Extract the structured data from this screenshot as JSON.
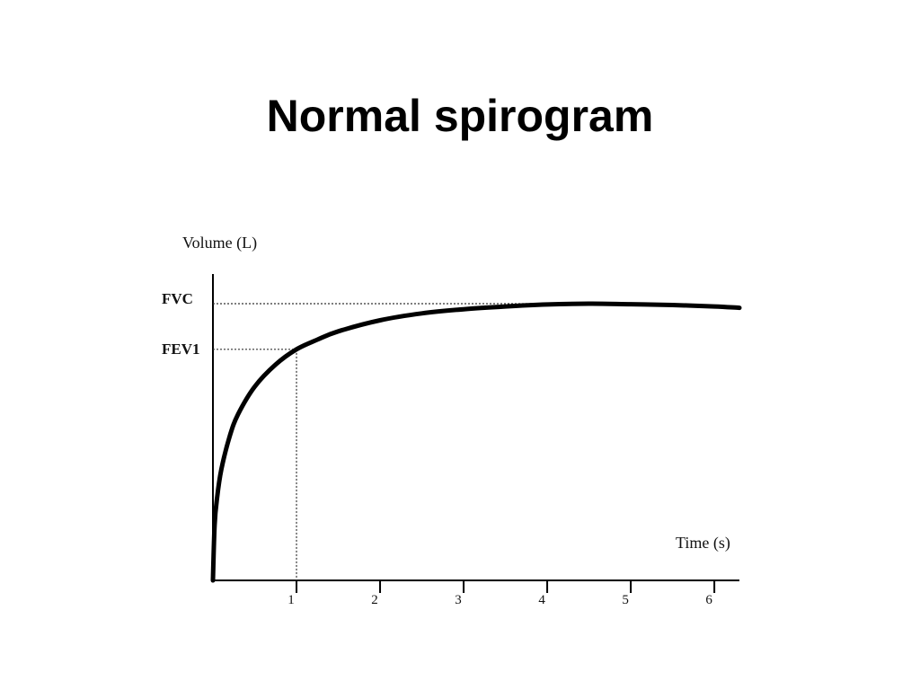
{
  "slide": {
    "title": "Normal spirogram"
  },
  "chart_data": {
    "type": "line",
    "title": "",
    "ylabel": "Volume (L)",
    "xlabel": "Time (s)",
    "x_ticks": [
      "1",
      "2",
      "3",
      "4",
      "5",
      "6"
    ],
    "xlim": [
      0,
      6.3
    ],
    "y_ticks": [
      "FEV1",
      "FVC"
    ],
    "ylim": [
      0,
      1.07
    ],
    "markers": {
      "fvc": {
        "label": "FVC",
        "y": 1.0
      },
      "fev1": {
        "label": "FEV1",
        "x": 1,
        "y": 0.835
      }
    },
    "grid": false,
    "legend": "none",
    "series": [
      {
        "x": [
          0,
          0.02,
          0.05,
          0.1,
          0.2,
          0.3,
          0.5,
          0.75,
          1.0,
          1.25,
          1.5,
          2.0,
          2.5,
          3.0,
          3.5,
          4.0,
          4.5,
          5.0,
          5.5,
          6.0,
          6.3
        ],
        "values": [
          0,
          0.2,
          0.3,
          0.4,
          0.52,
          0.6,
          0.7,
          0.78,
          0.835,
          0.87,
          0.9,
          0.94,
          0.965,
          0.98,
          0.99,
          0.997,
          1.0,
          0.998,
          0.995,
          0.99,
          0.985
        ],
        "color": "#000000"
      }
    ]
  }
}
